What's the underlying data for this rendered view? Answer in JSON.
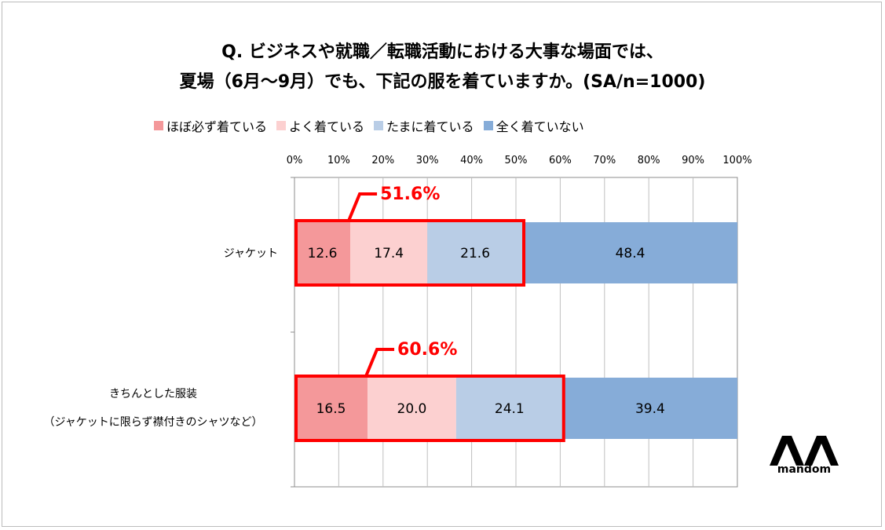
{
  "title_line1": "Q. ビジネスや就職／転職活動における大事な場面では、",
  "title_line2": "夏場（6月～9月）でも、下記の服を着ていますか。(SA/n=1000)",
  "brand": "mandom",
  "colors": {
    "always": "#f4989a",
    "often": "#fcd0d0",
    "sometimes": "#b9cde6",
    "never": "#86acd8",
    "highlight": "#ff0000",
    "grid": "#bfbfbf"
  },
  "chart_data": {
    "type": "bar",
    "orientation": "horizontal",
    "stacked": true,
    "xlim": [
      0,
      100
    ],
    "x_ticks": [
      "0%",
      "10%",
      "20%",
      "30%",
      "40%",
      "50%",
      "60%",
      "70%",
      "80%",
      "90%",
      "100%"
    ],
    "legend_position": "top",
    "categories": [
      [
        "ジャケット"
      ],
      [
        "きちんとした服装",
        "（ジャケットに限らず襟付きのシャツなど）"
      ]
    ],
    "series": [
      {
        "name": "ほぼ必ず着ている",
        "color": "#f4989a",
        "values": [
          12.6,
          16.5
        ]
      },
      {
        "name": "よく着ている",
        "color": "#fcd0d0",
        "values": [
          17.4,
          20.0
        ]
      },
      {
        "name": "たまに着ている",
        "color": "#b9cde6",
        "values": [
          21.6,
          24.1
        ]
      },
      {
        "name": "全く着ていない",
        "color": "#86acd8",
        "values": [
          48.4,
          39.4
        ]
      }
    ],
    "annotations": [
      "51.6%",
      "60.6%"
    ]
  }
}
